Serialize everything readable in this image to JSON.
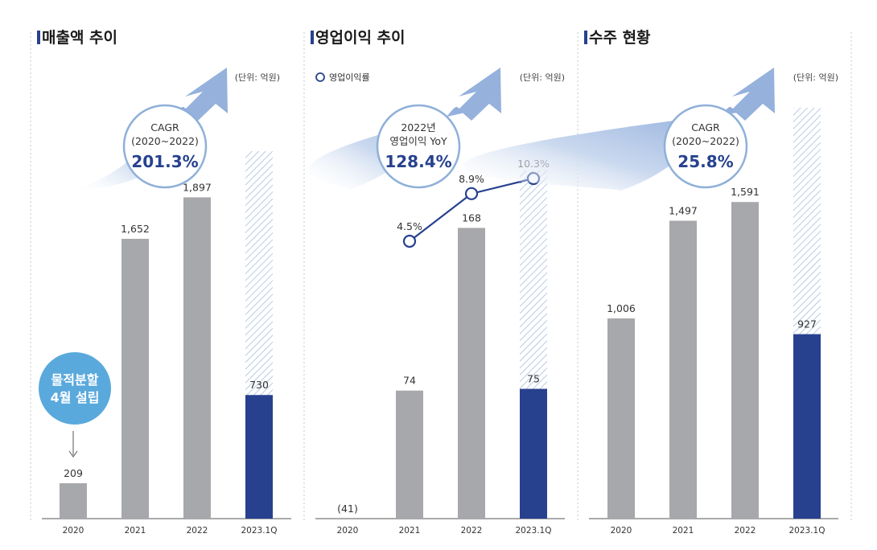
{
  "colors": {
    "bar": "#a7a8ab",
    "bar_current": "#27418f",
    "hatch": "#9fb8d6",
    "bubble_border": "#8fb0d8",
    "arrow": "#95b1dc",
    "callout": "#5aa9dc",
    "line": "#27418f"
  },
  "chart_data": [
    {
      "type": "bar",
      "title": "매출액 추이",
      "unit": "(단위: 억원)",
      "categories": [
        "2020",
        "2021",
        "2022",
        "2023.1Q"
      ],
      "values": [
        209,
        1652,
        1897,
        730
      ],
      "value_labels": [
        "209",
        "1,652",
        "1,897",
        "730"
      ],
      "hatched_background_last_bar": true,
      "ylim": [
        0,
        2350
      ],
      "bubble": {
        "line1": "CAGR",
        "line2": "(2020~2022)",
        "big": "201.3%"
      },
      "callout": {
        "line1": "물적분할",
        "line2": "4월 설립"
      }
    },
    {
      "type": "bar+line",
      "title": "영업이익 추이",
      "unit": "(단위: 억원)",
      "legend": "영업이익률",
      "categories": [
        "2020",
        "2021",
        "2022",
        "2023.1Q"
      ],
      "values": [
        -41,
        74,
        168,
        75
      ],
      "value_labels": [
        "(41)",
        "74",
        "168",
        "75"
      ],
      "hatched_background_last_bar": true,
      "ylim": [
        0,
        230
      ],
      "line": {
        "x": [
          "2021",
          "2022",
          "2023.1Q"
        ],
        "values": [
          4.5,
          8.9,
          10.3
        ],
        "labels": [
          "4.5%",
          "8.9%",
          "10.3%"
        ],
        "ylim": [
          0,
          18
        ]
      },
      "bubble": {
        "line1": "2022년",
        "line2": "영업이익 YoY",
        "big": "128.4%"
      }
    },
    {
      "type": "bar",
      "title": "수주 현황",
      "unit": "(단위: 억원)",
      "categories": [
        "2020",
        "2021",
        "2022",
        "2023.1Q"
      ],
      "values": [
        1006,
        1497,
        1591,
        927
      ],
      "value_labels": [
        "1,006",
        "1,497",
        "1,591",
        "927"
      ],
      "hatched_background_last_bar": true,
      "ylim": [
        0,
        2000
      ],
      "bubble": {
        "line1": "CAGR",
        "line2": "(2020~2022)",
        "big": "25.8%"
      }
    }
  ]
}
